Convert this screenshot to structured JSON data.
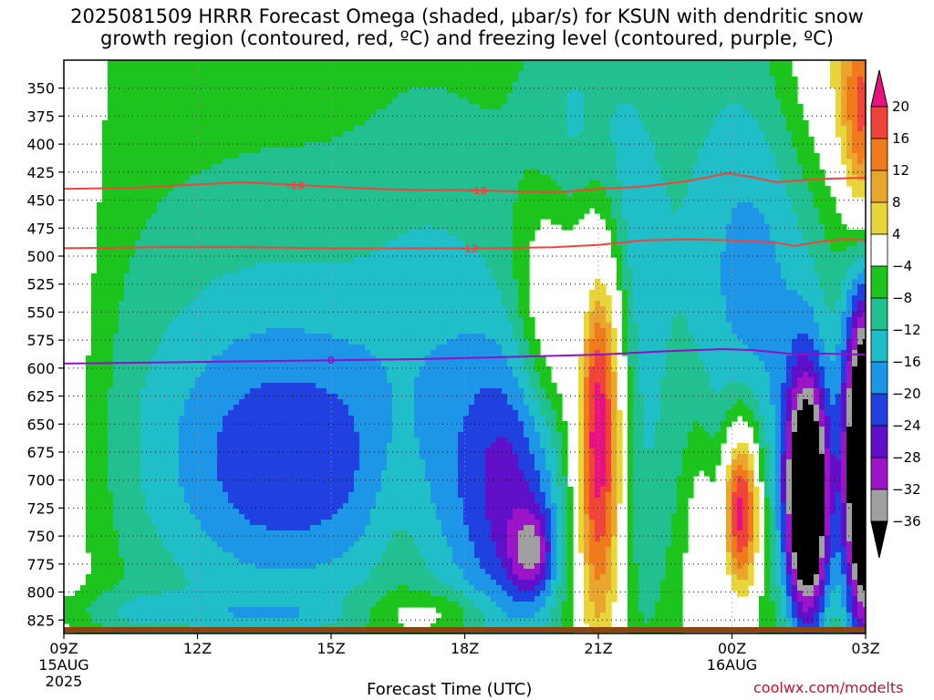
{
  "chart_data": {
    "type": "heatmap",
    "title": "2025081509 HRRR Forecast Omega (shaded, μbar/s) for KSUN with dendritic snow",
    "subtitle": "growth region (contoured, red, ºC) and freezing level (contoured, purple, ºC)",
    "xlabel": "Forecast Time (UTC)",
    "credit": "coolwx.com/modelts",
    "x_ticks": [
      {
        "label": "09Z",
        "sub": [
          "15AUG",
          "2025"
        ],
        "hour": 0
      },
      {
        "label": "12Z",
        "sub": [],
        "hour": 3
      },
      {
        "label": "15Z",
        "sub": [],
        "hour": 6
      },
      {
        "label": "18Z",
        "sub": [],
        "hour": 9
      },
      {
        "label": "21Z",
        "sub": [],
        "hour": 12
      },
      {
        "label": "00Z",
        "sub": [
          "16AUG"
        ],
        "hour": 15
      },
      {
        "label": "03Z",
        "sub": [],
        "hour": 18
      }
    ],
    "x_range_hours": [
      0,
      18
    ],
    "y_ticks": [
      350,
      375,
      400,
      425,
      450,
      475,
      500,
      525,
      550,
      575,
      600,
      625,
      650,
      675,
      700,
      725,
      750,
      775,
      800,
      825
    ],
    "y_range_mb": [
      325,
      837
    ],
    "colorbar": {
      "labels": [
        "20",
        "16",
        "12",
        "8",
        "4",
        "−4",
        "−8",
        "−12",
        "−16",
        "−20",
        "−24",
        "−28",
        "−32",
        "−36"
      ],
      "bands": [
        {
          "lo": 20,
          "hi": 99,
          "color": "#e8127e"
        },
        {
          "lo": 16,
          "hi": 20,
          "color": "#f0433a"
        },
        {
          "lo": 12,
          "hi": 16,
          "color": "#f07b1a"
        },
        {
          "lo": 8,
          "hi": 12,
          "color": "#eaa52d"
        },
        {
          "lo": 4,
          "hi": 8,
          "color": "#e8d53a"
        },
        {
          "lo": -4,
          "hi": 4,
          "color": "#ffffff"
        },
        {
          "lo": -8,
          "hi": -4,
          "color": "#1ec41e"
        },
        {
          "lo": -12,
          "hi": -8,
          "color": "#22c090"
        },
        {
          "lo": -16,
          "hi": -12,
          "color": "#1fbec8"
        },
        {
          "lo": -20,
          "hi": -16,
          "color": "#1e96e8"
        },
        {
          "lo": -24,
          "hi": -20,
          "color": "#2040e0"
        },
        {
          "lo": -28,
          "hi": -24,
          "color": "#6010c8"
        },
        {
          "lo": -32,
          "hi": -28,
          "color": "#9b14c8"
        },
        {
          "lo": -36,
          "hi": -32,
          "color": "#a0a0a0"
        },
        {
          "lo": -99,
          "hi": -36,
          "color": "#000000"
        }
      ]
    },
    "omega_features": [
      {
        "hour": 6.6,
        "mb": 470,
        "sx": 9.0,
        "sy": 390,
        "amp": -6
      },
      {
        "hour": 4.5,
        "mb": 665,
        "sx": 3.0,
        "sy": 150,
        "amp": -10
      },
      {
        "hour": 5.1,
        "mb": 690,
        "sx": 1.8,
        "sy": 75,
        "amp": -9
      },
      {
        "hour": 1.4,
        "mb": 818,
        "sx": 1.3,
        "sy": 14,
        "amp": -6
      },
      {
        "hour": 4.6,
        "mb": 820,
        "sx": 1.2,
        "sy": 9,
        "amp": -5
      },
      {
        "hour": 0.0,
        "mb": 590,
        "sx": 0.7,
        "sy": 220,
        "amp": 6
      },
      {
        "hour": 7.5,
        "mb": 720,
        "sx": 0.5,
        "sy": 80,
        "amp": 4
      },
      {
        "hour": 8.3,
        "mb": 820,
        "sx": 1.0,
        "sy": 15,
        "amp": 7
      },
      {
        "hour": 8.4,
        "mb": 600,
        "sx": 1.2,
        "sy": 180,
        "amp": -5
      },
      {
        "hour": 10.1,
        "mb": 720,
        "sx": 0.9,
        "sy": 105,
        "amp": -18
      },
      {
        "hour": 10.5,
        "mb": 765,
        "sx": 0.33,
        "sy": 26,
        "amp": -15
      },
      {
        "hour": 11.8,
        "mb": 440,
        "sx": 1.0,
        "sy": 115,
        "amp": -12
      },
      {
        "hour": 12.0,
        "mb": 650,
        "sx": 0.38,
        "sy": 130,
        "amp": 32
      },
      {
        "hour": 13.0,
        "mb": 705,
        "sx": 0.45,
        "sy": 160,
        "amp": -6
      },
      {
        "hour": 15.2,
        "mb": 725,
        "sx": 0.3,
        "sy": 55,
        "amp": 32
      },
      {
        "hour": 15.5,
        "mb": 520,
        "sx": 1.3,
        "sy": 190,
        "amp": -14
      },
      {
        "hour": 16.7,
        "mb": 720,
        "sx": 0.35,
        "sy": 80,
        "amp": -48
      },
      {
        "hour": 18.0,
        "mb": 690,
        "sx": 0.35,
        "sy": 110,
        "amp": -55
      },
      {
        "hour": 17.7,
        "mb": 340,
        "sx": 1.3,
        "sy": 80,
        "amp": 10
      },
      {
        "hour": 17.9,
        "mb": 390,
        "sx": 0.3,
        "sy": 70,
        "amp": 14
      }
    ],
    "white_mask": [
      {
        "hour": 11.0,
        "mb": 540,
        "sx": 0.6,
        "sy": 80,
        "amp": 16
      },
      {
        "hour": 14.3,
        "mb": 760,
        "sx": 0.25,
        "sy": 80,
        "amp": 8
      }
    ],
    "contours": [
      {
        "label": "-18",
        "color": "#f0433a",
        "points": [
          [
            0,
            440
          ],
          [
            1.5,
            439
          ],
          [
            3,
            436
          ],
          [
            4,
            434
          ],
          [
            5,
            436
          ],
          [
            6,
            438
          ],
          [
            7,
            440
          ],
          [
            8,
            441
          ],
          [
            9,
            441
          ],
          [
            10,
            442
          ],
          [
            11,
            443
          ],
          [
            12,
            440
          ],
          [
            13,
            438
          ],
          [
            14,
            433
          ],
          [
            14.9,
            426
          ],
          [
            15.4,
            429
          ],
          [
            16,
            434
          ],
          [
            17,
            431
          ],
          [
            18,
            430
          ]
        ],
        "label_at": [
          5.2,
          9.3
        ]
      },
      {
        "label": "-12",
        "color": "#f0433a",
        "points": [
          [
            0,
            493
          ],
          [
            2,
            492
          ],
          [
            4,
            492
          ],
          [
            6,
            493
          ],
          [
            8,
            493
          ],
          [
            9.5,
            493
          ],
          [
            11,
            492
          ],
          [
            12,
            490
          ],
          [
            13,
            486
          ],
          [
            14,
            485
          ],
          [
            15,
            486
          ],
          [
            16,
            488
          ],
          [
            16.4,
            491
          ],
          [
            17,
            487
          ],
          [
            17.5,
            485
          ],
          [
            18,
            486
          ]
        ],
        "label_at": [
          9.1
        ]
      },
      {
        "label": "0",
        "color": "#9010c8",
        "points": [
          [
            0,
            596
          ],
          [
            2,
            595
          ],
          [
            4,
            594
          ],
          [
            6,
            593
          ],
          [
            8,
            592
          ],
          [
            10,
            590
          ],
          [
            12,
            588
          ],
          [
            13.5,
            585
          ],
          [
            14.8,
            583
          ],
          [
            15.5,
            584
          ],
          [
            16,
            586
          ],
          [
            16.5,
            588
          ],
          [
            17,
            587
          ],
          [
            18,
            588
          ]
        ],
        "label_at": [
          6.0
        ]
      }
    ]
  }
}
